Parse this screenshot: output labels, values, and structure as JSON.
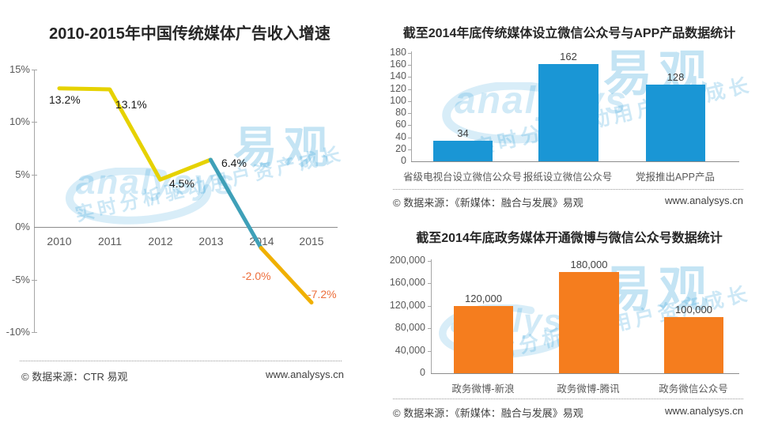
{
  "watermark": {
    "brand_latin": "analysys",
    "brand_cn": "易观",
    "slogan": "实时分析驱动用户资产成长"
  },
  "chart_data": [
    {
      "type": "line",
      "title": "2010-2015年中国传统媒体广告收入增速",
      "x": [
        "2010",
        "2011",
        "2012",
        "2013",
        "2014",
        "2015"
      ],
      "values": [
        13.2,
        13.1,
        4.5,
        6.4,
        -2.0,
        -7.2
      ],
      "value_labels": [
        "13.2%",
        "13.1%",
        "4.5%",
        "6.4%",
        "-2.0%",
        "-7.2%"
      ],
      "y_ticks": [
        "15%",
        "10%",
        "5%",
        "0%",
        "-5%",
        "-10%"
      ],
      "ylim": [
        -10,
        15
      ],
      "ylabel": "",
      "xlabel": "",
      "grid": false,
      "legend": "none",
      "segments": [
        {
          "name": "2010-2013",
          "color": "#e6d200"
        },
        {
          "name": "2013-2014",
          "color": "#3fa0b8"
        },
        {
          "name": "2014-2015",
          "color": "#f0b000"
        }
      ],
      "negative_label_color": "#ed6f3c",
      "source": "© 数据来源：CTR 易观",
      "site": "www.analysys.cn"
    },
    {
      "type": "bar",
      "title": "截至2014年底传统媒体设立微信公众号与APP产品数据统计",
      "categories": [
        "省级电视台设立微信公众号",
        "报纸设立微信公众号",
        "党报推出APP产品"
      ],
      "values": [
        34,
        162,
        128
      ],
      "value_labels": [
        "34",
        "162",
        "128"
      ],
      "y_ticks": [
        "180",
        "160",
        "140",
        "120",
        "100",
        "80",
        "60",
        "40",
        "20",
        "0"
      ],
      "ylim": [
        0,
        180
      ],
      "bar_color": "#1a96d5",
      "grid": false,
      "legend": "none",
      "source": "© 数据来源：《新媒体：融合与发展》易观",
      "site": "www.analysys.cn"
    },
    {
      "type": "bar",
      "title": "截至2014年底政务媒体开通微博与微信公众号数据统计",
      "categories": [
        "政务微博-新浪",
        "政务微博-腾讯",
        "政务微信公众号"
      ],
      "values": [
        120000,
        180000,
        100000
      ],
      "value_labels": [
        "120,000",
        "180,000",
        "100,000"
      ],
      "y_ticks": [
        "200,000",
        "160,000",
        "120,000",
        "80,000",
        "40,000",
        "0"
      ],
      "ylim": [
        0,
        200000
      ],
      "bar_color": "#f57d1e",
      "grid": false,
      "legend": "none",
      "source": "© 数据来源：《新媒体：融合与发展》易观",
      "site": "www.analysys.cn"
    }
  ]
}
